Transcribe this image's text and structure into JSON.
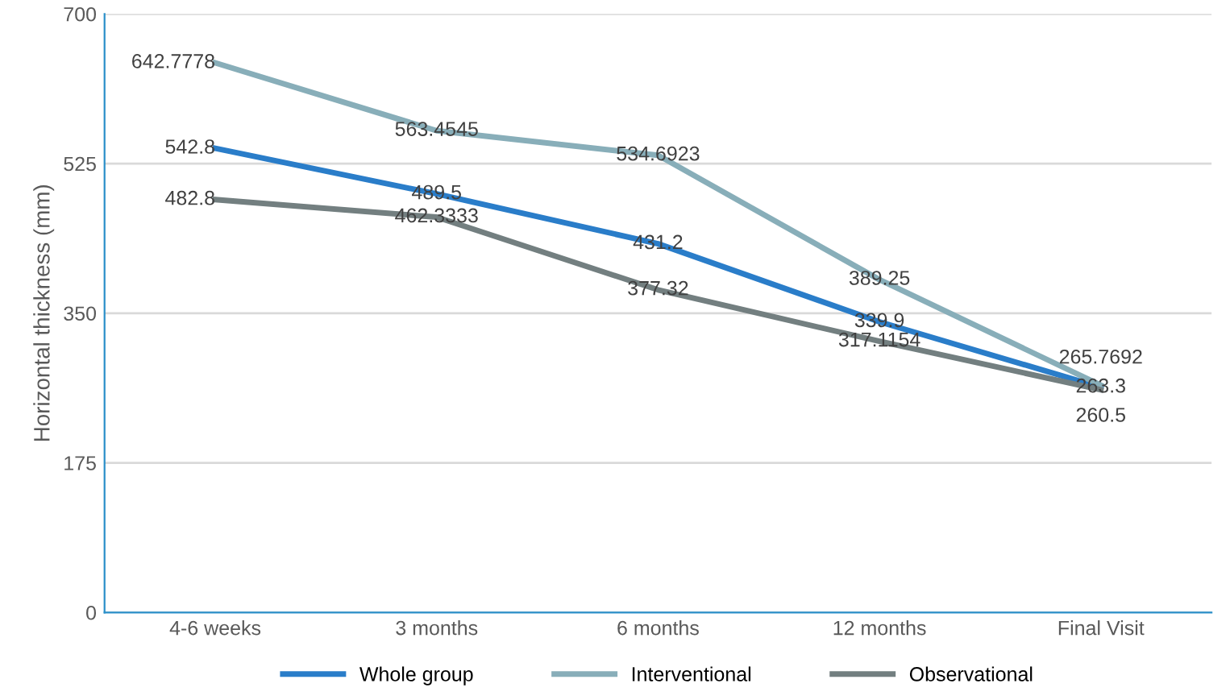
{
  "chart_data": {
    "type": "line",
    "ylabel": "Horizontal thickness (mm)",
    "categories": [
      "4-6 weeks",
      "3 months",
      "6 months",
      "12 months",
      "Final Visit"
    ],
    "series": [
      {
        "name": "Whole group",
        "color": "#2a7dc9",
        "values": [
          542.8,
          489.5,
          431.2,
          339.9,
          263.3
        ]
      },
      {
        "name": "Interventional",
        "color": "#88aeb9",
        "values": [
          642.7778,
          563.4545,
          534.6923,
          389.25,
          265.7692
        ]
      },
      {
        "name": "Observational",
        "color": "#737f80",
        "values": [
          482.8,
          462.3333,
          377.32,
          317.1154,
          260.5
        ]
      }
    ],
    "ylim": [
      0,
      700
    ],
    "yticks": [
      0,
      175,
      350,
      525,
      700
    ],
    "grid": "y",
    "legend": "bottom",
    "data_labels": true,
    "marker": "none",
    "line_style": "solid"
  }
}
